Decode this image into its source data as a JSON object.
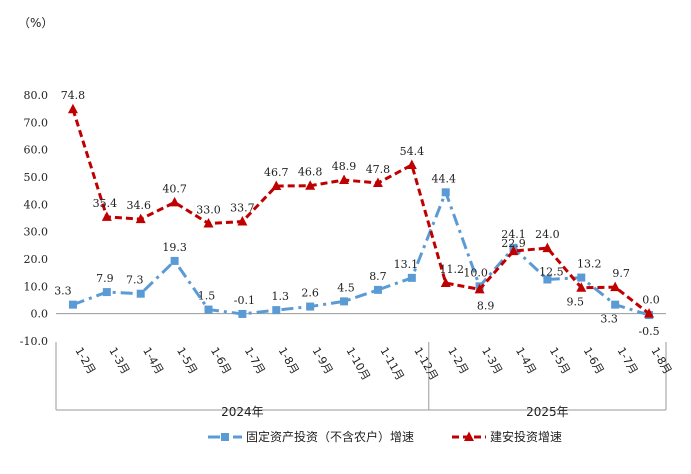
{
  "chart_data": {
    "type": "line",
    "unit_label": "（%）",
    "ylim": [
      -10,
      80
    ],
    "yticks": [
      "-10.0",
      "0.0",
      "10.0",
      "20.0",
      "30.0",
      "40.0",
      "50.0",
      "60.0",
      "70.0",
      "80.0"
    ],
    "categories": [
      "1-2月",
      "1-3月",
      "1-4月",
      "1-5月",
      "1-6月",
      "1-7月",
      "1-8月",
      "1-9月",
      "1-10月",
      "1-11月",
      "1-12月",
      "1-2月",
      "1-3月",
      "1-4月",
      "1-5月",
      "1-6月",
      "1-7月",
      "1-8月"
    ],
    "groups": [
      {
        "label": "2024年",
        "count": 11
      },
      {
        "label": "2025年",
        "count": 7
      }
    ],
    "series": [
      {
        "name": "固定资产投资（不含农户）增速",
        "color": "#5b9bd5",
        "marker": "square",
        "dash": "long-dash-dot",
        "values": [
          3.3,
          7.9,
          7.3,
          19.3,
          1.5,
          -0.1,
          1.3,
          2.6,
          4.5,
          8.7,
          13.1,
          44.4,
          10.0,
          24.1,
          12.5,
          13.2,
          3.3,
          -0.5
        ],
        "labels": [
          "3.3",
          "7.9",
          "7.3",
          "19.3",
          "1.5",
          "-0.1",
          "1.3",
          "2.6",
          "4.5",
          "8.7",
          "13.1",
          "44.4",
          "10.0",
          "24.1",
          "12.5",
          "13.2",
          "3.3",
          "-0.5"
        ]
      },
      {
        "name": "建安投资增速",
        "color": "#c00000",
        "marker": "triangle",
        "dash": "dash",
        "values": [
          74.8,
          35.4,
          34.6,
          40.7,
          33.0,
          33.7,
          46.7,
          46.8,
          48.9,
          47.8,
          54.4,
          11.2,
          8.9,
          22.9,
          24.0,
          9.5,
          9.7,
          0.0
        ],
        "labels": [
          "74.8",
          "35.4",
          "34.6",
          "40.7",
          "33.0",
          "33.7",
          "46.7",
          "46.8",
          "48.9",
          "47.8",
          "54.4",
          "11.2",
          "8.9",
          "22.9",
          "24.0",
          "9.5",
          "9.7",
          "0.0"
        ]
      }
    ]
  }
}
